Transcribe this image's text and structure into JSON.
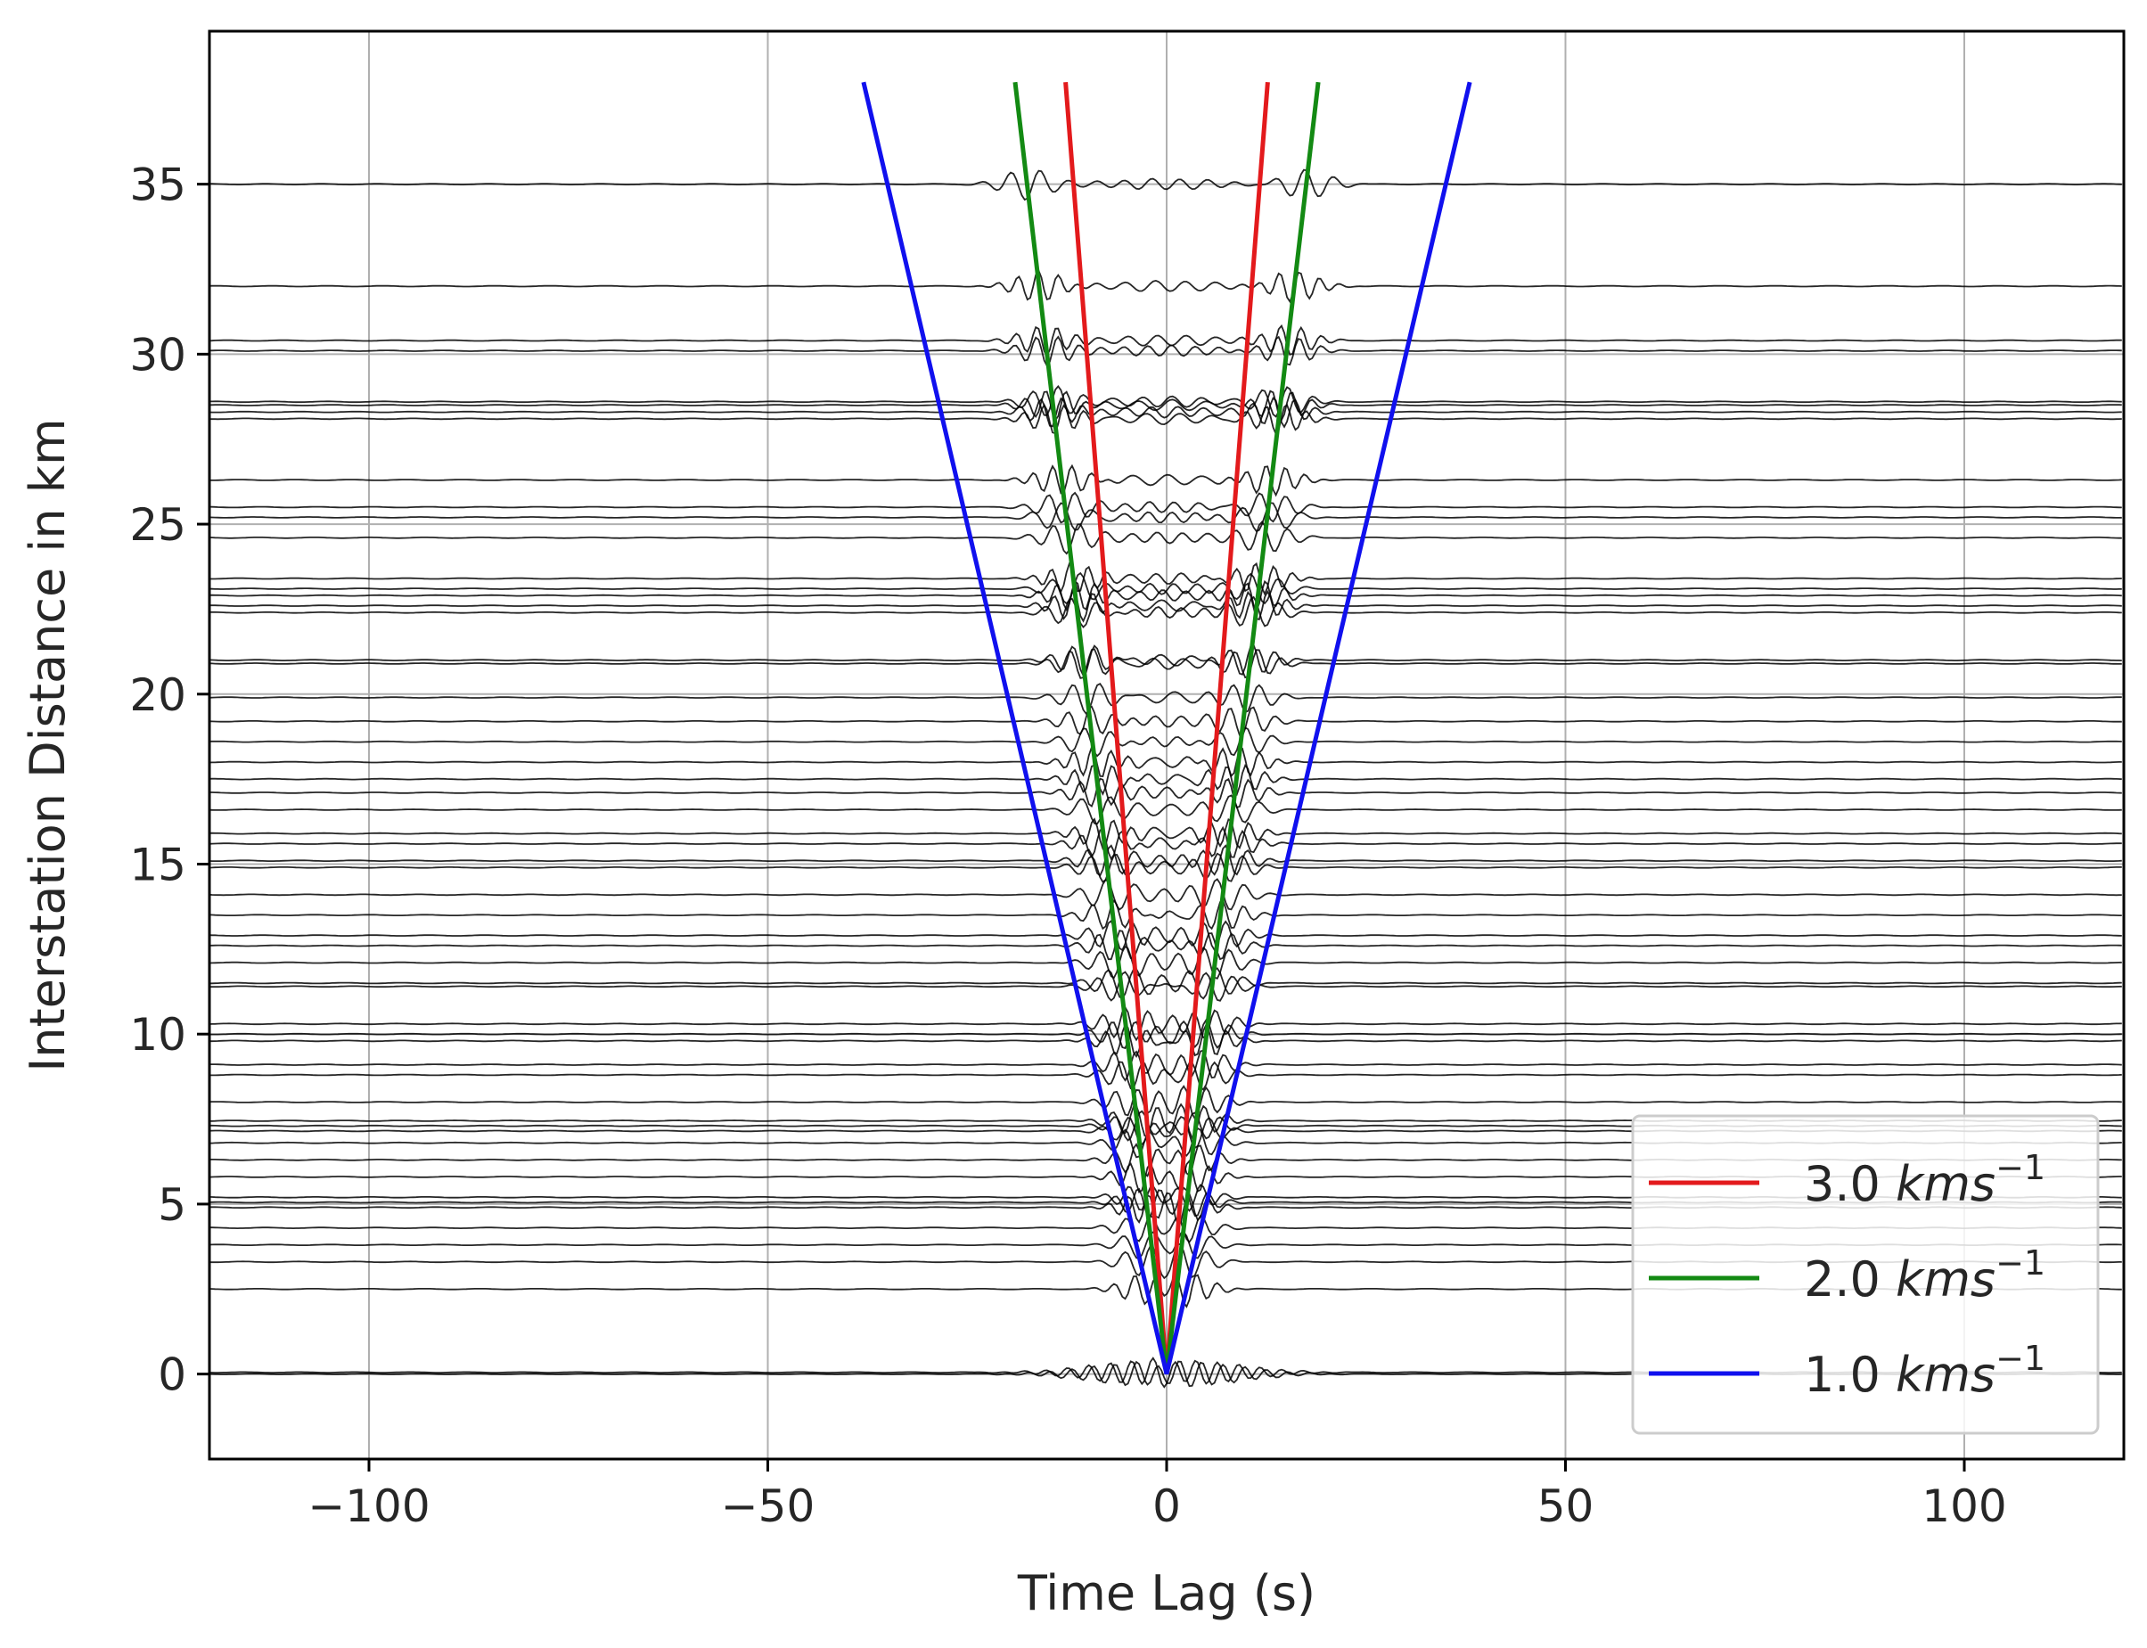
{
  "chart_data": {
    "type": "line",
    "xlabel": "Time Lag (s)",
    "ylabel": "Interstation Distance in km",
    "xlim": [
      -120,
      120
    ],
    "ylim": [
      -2.5,
      39.5
    ],
    "xticks": [
      {
        "value": -100,
        "label": "−100"
      },
      {
        "value": -50,
        "label": "−50"
      },
      {
        "value": 0,
        "label": "0"
      },
      {
        "value": 50,
        "label": "50"
      },
      {
        "value": 100,
        "label": "100"
      }
    ],
    "yticks": [
      {
        "value": 0,
        "label": "0"
      },
      {
        "value": 5,
        "label": "5"
      },
      {
        "value": 10,
        "label": "10"
      },
      {
        "value": 15,
        "label": "15"
      },
      {
        "value": 20,
        "label": "20"
      },
      {
        "value": 25,
        "label": "25"
      },
      {
        "value": 30,
        "label": "30"
      },
      {
        "value": 35,
        "label": "35"
      }
    ],
    "grid": true,
    "legend_position": "bottom-right",
    "series": [
      {
        "name": "3.0 kms⁻¹",
        "label_main": "3.0",
        "label_unit": "kms",
        "label_exp": "−1",
        "velocity": 3.0,
        "color": "#e31a1c",
        "x": [
          -12.67,
          0,
          12.67
        ],
        "y": [
          38,
          0,
          38
        ]
      },
      {
        "name": "2.0 kms⁻¹",
        "label_main": "2.0",
        "label_unit": "kms",
        "label_exp": "−1",
        "velocity": 2.0,
        "color": "#138a13",
        "x": [
          -19,
          0,
          19
        ],
        "y": [
          38,
          0,
          38
        ]
      },
      {
        "name": "1.0 kms⁻¹",
        "label_main": "1.0",
        "label_unit": "kms",
        "label_exp": "−1",
        "velocity": 1.0,
        "color": "#1010ee",
        "x": [
          -38,
          0,
          38
        ],
        "y": [
          38,
          0,
          38
        ]
      }
    ],
    "trace_distances_km": [
      0,
      0.05,
      2.5,
      3.3,
      3.8,
      4.3,
      4.9,
      5.05,
      5.2,
      5.8,
      6.3,
      6.8,
      7.15,
      7.3,
      7.45,
      8.0,
      8.8,
      9.1,
      9.8,
      10.0,
      10.3,
      11.4,
      11.5,
      12.1,
      12.6,
      12.9,
      13.5,
      14.1,
      14.9,
      15.1,
      15.6,
      15.9,
      16.6,
      17.1,
      17.5,
      18.0,
      18.6,
      19.2,
      19.9,
      20.9,
      21.0,
      22.4,
      22.6,
      22.9,
      23.1,
      23.4,
      24.6,
      25.2,
      25.5,
      26.3,
      28.1,
      28.3,
      28.5,
      28.6,
      30.1,
      30.4,
      32.0,
      35.0
    ],
    "trace_color": "#000000"
  }
}
